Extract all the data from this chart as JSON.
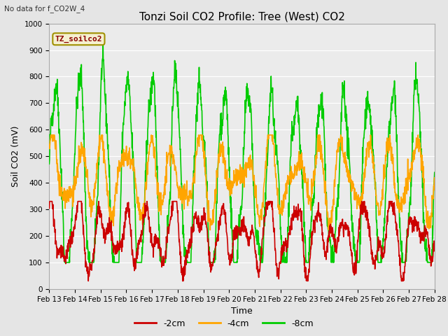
{
  "title": "Tonzi Soil CO2 Profile: Tree (West) CO2",
  "subtitle": "No data for f_CO2W_4",
  "ylabel": "Soil CO2 (mV)",
  "xlabel": "Time",
  "legend_label": "TZ_soilco2",
  "ylim": [
    0,
    1000
  ],
  "yticks": [
    0,
    100,
    200,
    300,
    400,
    500,
    600,
    700,
    800,
    900,
    1000
  ],
  "xtick_labels": [
    "Feb 13",
    "Feb 14",
    "Feb 15",
    "Feb 16",
    "Feb 17",
    "Feb 18",
    "Feb 19",
    "Feb 20",
    "Feb 21",
    "Feb 22",
    "Feb 23",
    "Feb 24",
    "Feb 25",
    "Feb 26",
    "Feb 27",
    "Feb 28"
  ],
  "series_labels": [
    "-2cm",
    "-4cm",
    "-8cm"
  ],
  "series_colors": [
    "#cc0000",
    "#ffa500",
    "#00cc00"
  ],
  "background_color": "#e5e5e5",
  "plot_bg_color": "#ebebeb",
  "grid_color": "#ffffff",
  "legend_box_color": "#f5f0d0",
  "legend_box_edge": "#a09000",
  "legend_text_color": "#8b0000",
  "title_fontsize": 11,
  "axis_label_fontsize": 9,
  "tick_fontsize": 7.5,
  "line_width": 1.2,
  "n_points": 1500,
  "seed": 42
}
